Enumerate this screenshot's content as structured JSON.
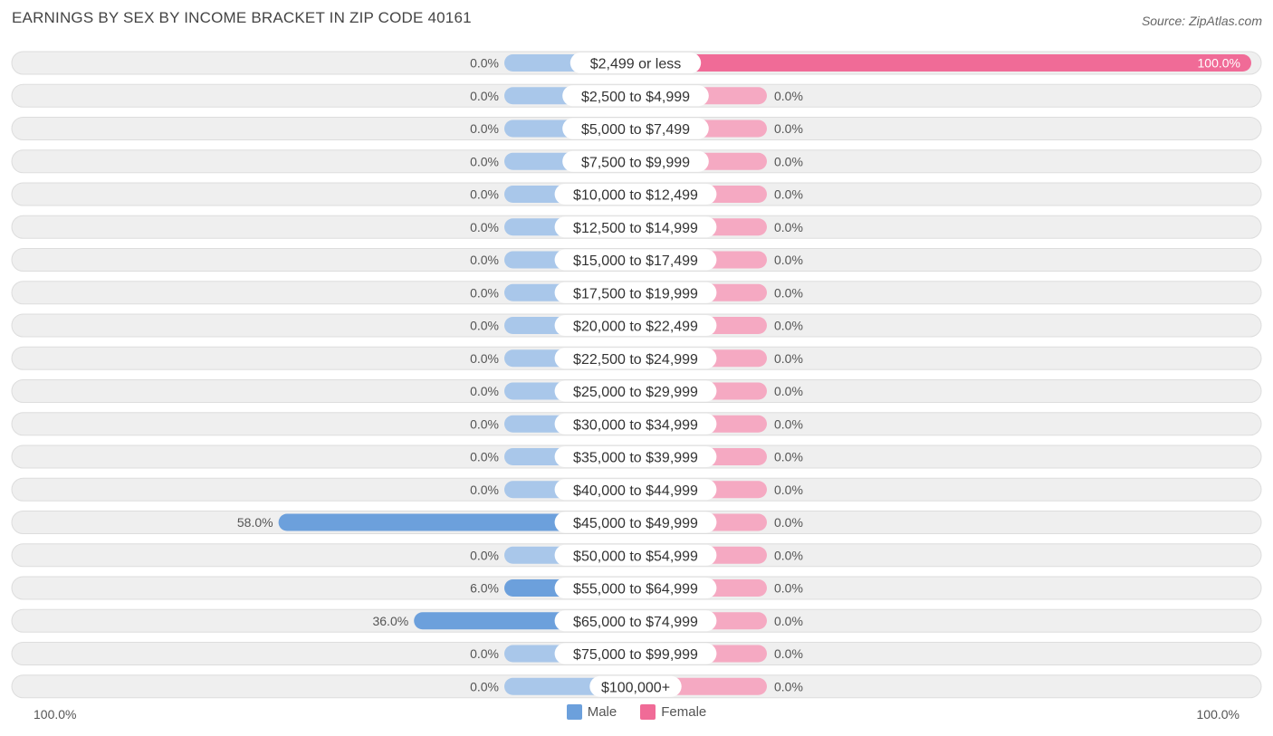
{
  "title": "EARNINGS BY SEX BY INCOME BRACKET IN ZIP CODE 40161",
  "source": "Source: ZipAtlas.com",
  "colors": {
    "male": "#6ca0dc",
    "male_light": "#a9c7ea",
    "female": "#f06b97",
    "female_light": "#f5a9c2",
    "row_bg": "#efefef",
    "row_border": "#dddddd"
  },
  "axis": {
    "left_label": "100.0%",
    "right_label": "100.0%"
  },
  "legend": [
    {
      "label": "Male",
      "color": "#6ca0dc"
    },
    {
      "label": "Female",
      "color": "#f06b97"
    }
  ],
  "chart_data": {
    "type": "bar",
    "orientation": "horizontal-diverging",
    "title": "EARNINGS BY SEX BY INCOME BRACKET IN ZIP CODE 40161",
    "xlim": [
      -100,
      100
    ],
    "categories": [
      "$2,499 or less",
      "$2,500 to $4,999",
      "$5,000 to $7,499",
      "$7,500 to $9,999",
      "$10,000 to $12,499",
      "$12,500 to $14,999",
      "$15,000 to $17,499",
      "$17,500 to $19,999",
      "$20,000 to $22,499",
      "$22,500 to $24,999",
      "$25,000 to $29,999",
      "$30,000 to $34,999",
      "$35,000 to $39,999",
      "$40,000 to $44,999",
      "$45,000 to $49,999",
      "$50,000 to $54,999",
      "$55,000 to $64,999",
      "$65,000 to $74,999",
      "$75,000 to $99,999",
      "$100,000+"
    ],
    "series": [
      {
        "name": "Male",
        "values": [
          0,
          0,
          0,
          0,
          0,
          0,
          0,
          0,
          0,
          0,
          0,
          0,
          0,
          0,
          58.0,
          0,
          6.0,
          36.0,
          0,
          0
        ]
      },
      {
        "name": "Female",
        "values": [
          100.0,
          0,
          0,
          0,
          0,
          0,
          0,
          0,
          0,
          0,
          0,
          0,
          0,
          0,
          0,
          0,
          0,
          0,
          0,
          0
        ]
      }
    ],
    "male_labels": [
      "0.0%",
      "0.0%",
      "0.0%",
      "0.0%",
      "0.0%",
      "0.0%",
      "0.0%",
      "0.0%",
      "0.0%",
      "0.0%",
      "0.0%",
      "0.0%",
      "0.0%",
      "0.0%",
      "58.0%",
      "0.0%",
      "6.0%",
      "36.0%",
      "0.0%",
      "0.0%"
    ],
    "female_labels": [
      "100.0%",
      "0.0%",
      "0.0%",
      "0.0%",
      "0.0%",
      "0.0%",
      "0.0%",
      "0.0%",
      "0.0%",
      "0.0%",
      "0.0%",
      "0.0%",
      "0.0%",
      "0.0%",
      "0.0%",
      "0.0%",
      "0.0%",
      "0.0%",
      "0.0%",
      "0.0%"
    ]
  }
}
